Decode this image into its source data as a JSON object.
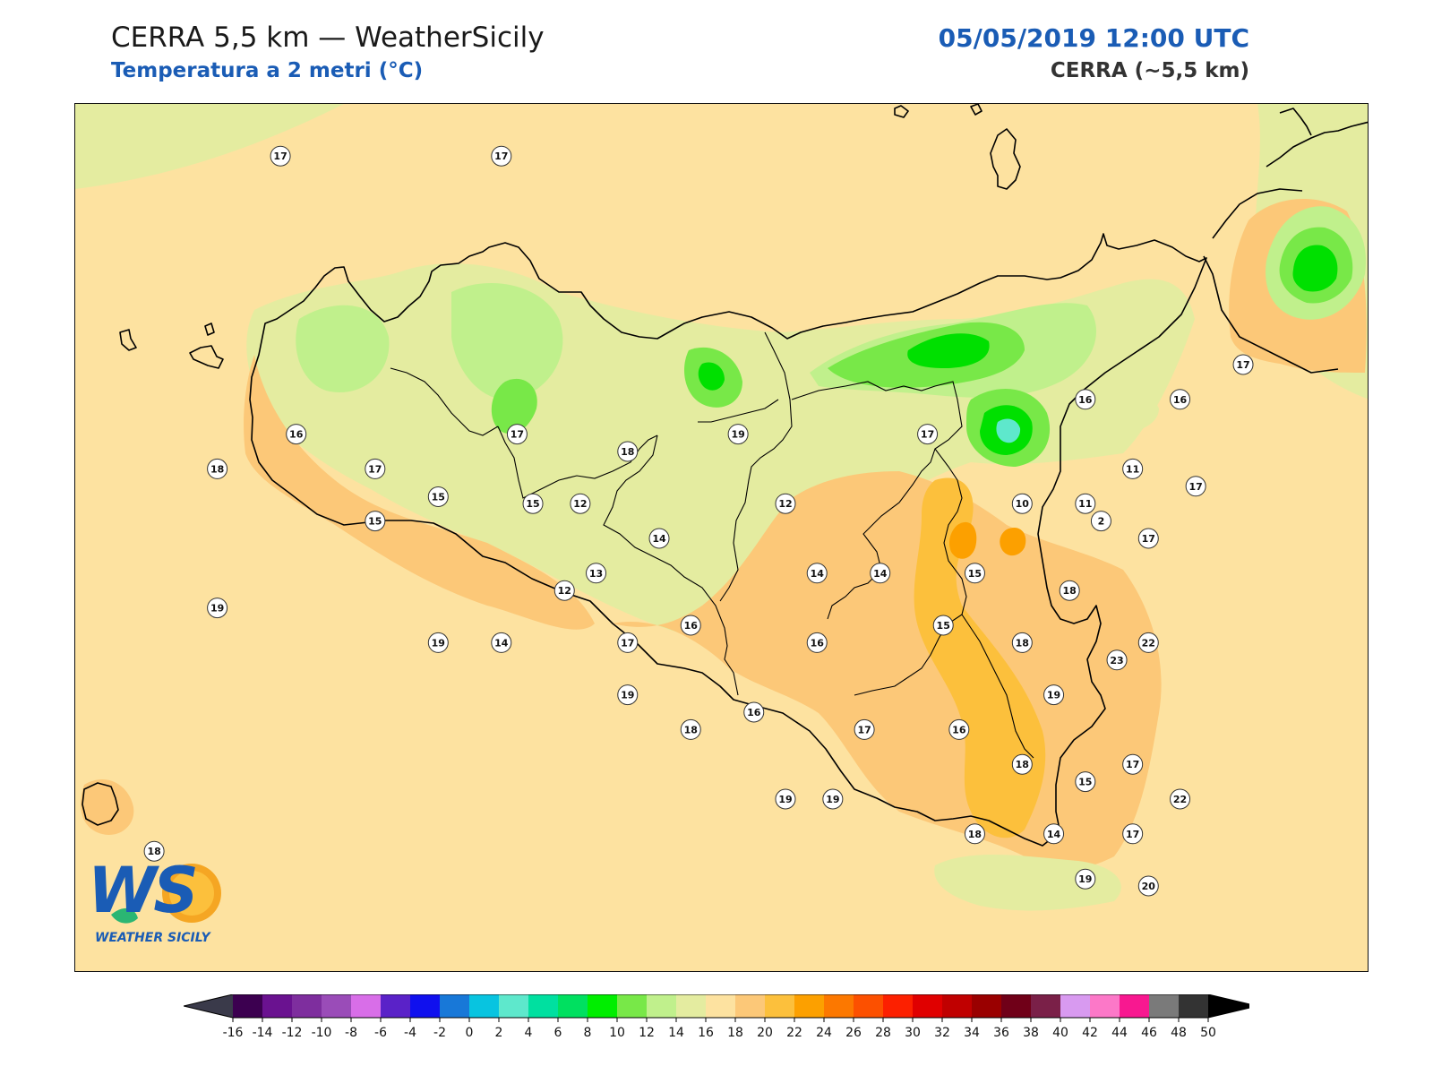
{
  "header": {
    "title": "CERRA 5,5 km — WeatherSicily",
    "subtitle": "Temperatura a 2 metri (°C)",
    "datetime": "05/05/2019 12:00 UTC",
    "model": "CERRA (~5,5 km)"
  },
  "logo": {
    "text": "WS",
    "caption": "WEATHER SICILY"
  },
  "colorbar": {
    "ticks": [
      "-16",
      "-14",
      "-12",
      "-10",
      "-8",
      "-6",
      "-4",
      "-2",
      "0",
      "2",
      "4",
      "6",
      "8",
      "10",
      "12",
      "14",
      "16",
      "18",
      "20",
      "22",
      "24",
      "26",
      "28",
      "30",
      "32",
      "34",
      "36",
      "38",
      "40",
      "42",
      "44",
      "46",
      "48",
      "50"
    ],
    "colors": [
      "#3c0050",
      "#6a1290",
      "#7e2e9e",
      "#9a4cb8",
      "#d86ee8",
      "#5a22c8",
      "#1010ee",
      "#1878d8",
      "#08c4e0",
      "#5ee8cc",
      "#00e0a0",
      "#00e060",
      "#00ee00",
      "#78e848",
      "#c0f08c",
      "#e4eca0",
      "#fde2a0",
      "#fcc878",
      "#fcc03c",
      "#fca000",
      "#fc7800",
      "#fc5000",
      "#fc2000",
      "#e00000",
      "#c00000",
      "#9a0000",
      "#700018",
      "#7a2048",
      "#d89af0",
      "#fc78c8",
      "#f81890",
      "#7a7a7a",
      "#333333"
    ]
  },
  "stations": [
    {
      "v": "17",
      "x": 12.4,
      "y": 38.8
    },
    {
      "v": "17",
      "x": 13.1,
      "y": 38.8
    },
    {
      "v": "16",
      "x": 12.45,
      "y": 38.0
    },
    {
      "v": "18",
      "x": 12.2,
      "y": 37.9
    },
    {
      "v": "17",
      "x": 12.7,
      "y": 37.9
    },
    {
      "v": "15",
      "x": 12.9,
      "y": 37.82
    },
    {
      "v": "15",
      "x": 12.7,
      "y": 37.75
    },
    {
      "v": "19",
      "x": 12.2,
      "y": 37.5
    },
    {
      "v": "19",
      "x": 12.9,
      "y": 37.4
    },
    {
      "v": "14",
      "x": 13.1,
      "y": 37.4
    },
    {
      "v": "12",
      "x": 13.3,
      "y": 37.55
    },
    {
      "v": "13",
      "x": 13.4,
      "y": 37.6
    },
    {
      "v": "14",
      "x": 13.6,
      "y": 37.7
    },
    {
      "v": "17",
      "x": 13.15,
      "y": 38.0
    },
    {
      "v": "18",
      "x": 13.5,
      "y": 37.95
    },
    {
      "v": "15",
      "x": 13.2,
      "y": 37.8
    },
    {
      "v": "12",
      "x": 13.35,
      "y": 37.8
    },
    {
      "v": "19",
      "x": 13.85,
      "y": 38.0
    },
    {
      "v": "12",
      "x": 14.0,
      "y": 37.8
    },
    {
      "v": "17",
      "x": 14.45,
      "y": 38.0
    },
    {
      "v": "14",
      "x": 14.1,
      "y": 37.6
    },
    {
      "v": "14",
      "x": 14.3,
      "y": 37.6
    },
    {
      "v": "15",
      "x": 14.6,
      "y": 37.6
    },
    {
      "v": "16",
      "x": 13.7,
      "y": 37.45
    },
    {
      "v": "17",
      "x": 13.5,
      "y": 37.4
    },
    {
      "v": "16",
      "x": 14.1,
      "y": 37.4
    },
    {
      "v": "15",
      "x": 14.5,
      "y": 37.45
    },
    {
      "v": "18",
      "x": 14.75,
      "y": 37.4
    },
    {
      "v": "19",
      "x": 13.5,
      "y": 37.25
    },
    {
      "v": "18",
      "x": 13.7,
      "y": 37.15
    },
    {
      "v": "16",
      "x": 13.9,
      "y": 37.2
    },
    {
      "v": "17",
      "x": 14.25,
      "y": 37.15
    },
    {
      "v": "16",
      "x": 14.55,
      "y": 37.15
    },
    {
      "v": "19",
      "x": 14.15,
      "y": 36.95
    },
    {
      "v": "19",
      "x": 14.0,
      "y": 36.95
    },
    {
      "v": "18",
      "x": 14.75,
      "y": 37.05
    },
    {
      "v": "19",
      "x": 14.85,
      "y": 37.25
    },
    {
      "v": "15",
      "x": 14.95,
      "y": 37.0
    },
    {
      "v": "17",
      "x": 15.1,
      "y": 37.05
    },
    {
      "v": "14",
      "x": 14.85,
      "y": 36.85
    },
    {
      "v": "18",
      "x": 14.6,
      "y": 36.85
    },
    {
      "v": "17",
      "x": 15.1,
      "y": 36.85
    },
    {
      "v": "22",
      "x": 15.25,
      "y": 36.95
    },
    {
      "v": "19",
      "x": 14.95,
      "y": 36.72
    },
    {
      "v": "20",
      "x": 15.15,
      "y": 36.7
    },
    {
      "v": "23",
      "x": 15.05,
      "y": 37.35
    },
    {
      "v": "22",
      "x": 15.15,
      "y": 37.4
    },
    {
      "v": "18",
      "x": 14.9,
      "y": 37.55
    },
    {
      "v": "2",
      "x": 15.0,
      "y": 37.75
    },
    {
      "v": "10",
      "x": 14.75,
      "y": 37.8
    },
    {
      "v": "11",
      "x": 14.95,
      "y": 37.8
    },
    {
      "v": "11",
      "x": 15.1,
      "y": 37.9
    },
    {
      "v": "16",
      "x": 14.95,
      "y": 38.1
    },
    {
      "v": "16",
      "x": 15.25,
      "y": 38.1
    },
    {
      "v": "17",
      "x": 15.45,
      "y": 38.2
    },
    {
      "v": "17",
      "x": 15.3,
      "y": 37.85
    },
    {
      "v": "17",
      "x": 15.15,
      "y": 37.7
    },
    {
      "v": "18",
      "x": 12.0,
      "y": 36.8
    }
  ]
}
